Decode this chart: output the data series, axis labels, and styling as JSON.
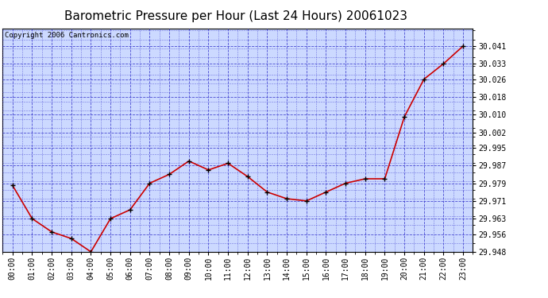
{
  "title": "Barometric Pressure per Hour (Last 24 Hours) 20061023",
  "copyright": "Copyright 2006 Cantronics.com",
  "hours": [
    "00:00",
    "01:00",
    "02:00",
    "03:00",
    "04:00",
    "05:00",
    "06:00",
    "07:00",
    "08:00",
    "09:00",
    "10:00",
    "11:00",
    "12:00",
    "13:00",
    "14:00",
    "15:00",
    "16:00",
    "17:00",
    "18:00",
    "19:00",
    "20:00",
    "21:00",
    "22:00",
    "23:00"
  ],
  "values": [
    29.978,
    29.963,
    29.957,
    29.954,
    29.948,
    29.963,
    29.967,
    29.979,
    29.983,
    29.989,
    29.985,
    29.988,
    29.982,
    29.975,
    29.972,
    29.971,
    29.975,
    29.979,
    29.981,
    29.981,
    30.009,
    30.026,
    30.033,
    30.041
  ],
  "ylim_min": 29.948,
  "ylim_max": 30.049,
  "yticks": [
    29.948,
    29.956,
    29.963,
    29.971,
    29.979,
    29.987,
    29.995,
    30.002,
    30.01,
    30.018,
    30.026,
    30.033,
    30.041
  ],
  "ytick_labels": [
    "29.948",
    "29.956",
    "29.963",
    "29.971",
    "29.979",
    "29.987",
    "29.995",
    "30.002",
    "30.010",
    "30.018",
    "30.026",
    "30.033",
    "30.041"
  ],
  "line_color": "#cc0000",
  "marker_color": "#000000",
  "bg_color": "#ccd9ff",
  "grid_color": "#3333cc",
  "title_fontsize": 11,
  "tick_fontsize": 7,
  "copyright_fontsize": 6.5
}
